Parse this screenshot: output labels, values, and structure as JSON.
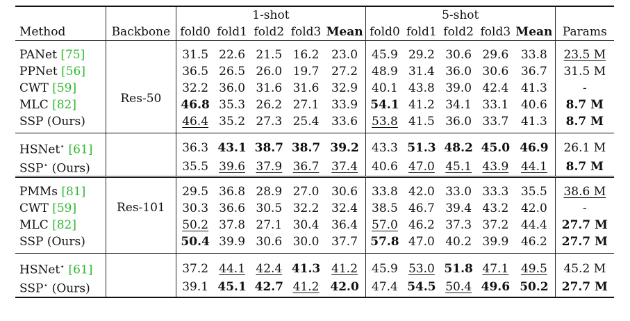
{
  "header": {
    "method": "Method",
    "backbone": "Backbone",
    "one_shot": "1-shot",
    "five_shot": "5-shot",
    "params": "Params",
    "folds": [
      "fold0",
      "fold1",
      "fold2",
      "fold3",
      "Mean"
    ]
  },
  "groups": [
    {
      "backbone": "Res-50",
      "rows": [
        {
          "name": "PANet ",
          "cite": "[75]",
          "star": "",
          "suffix": "",
          "one": [
            "31.5",
            "22.6",
            "21.5",
            "16.2",
            "23.0"
          ],
          "one_fmt": [
            "",
            "",
            "",
            "",
            ""
          ],
          "five": [
            "45.9",
            "29.2",
            "30.6",
            "29.6",
            "33.8"
          ],
          "five_fmt": [
            "",
            "",
            "",
            "",
            ""
          ],
          "params": "23.5 M",
          "params_fmt": "u"
        },
        {
          "name": "PPNet ",
          "cite": "[56]",
          "star": "",
          "suffix": "",
          "one": [
            "36.5",
            "26.5",
            "26.0",
            "19.7",
            "27.2"
          ],
          "one_fmt": [
            "",
            "",
            "",
            "",
            ""
          ],
          "five": [
            "48.9",
            "31.4",
            "36.0",
            "30.6",
            "36.7"
          ],
          "five_fmt": [
            "",
            "",
            "",
            "",
            ""
          ],
          "params": "31.5 M",
          "params_fmt": ""
        },
        {
          "name": "CWT ",
          "cite": "[59]",
          "star": "",
          "suffix": "",
          "one": [
            "32.2",
            "36.0",
            "31.6",
            "31.6",
            "32.9"
          ],
          "one_fmt": [
            "",
            "",
            "",
            "",
            ""
          ],
          "five": [
            "40.1",
            "43.8",
            "39.0",
            "42.4",
            "41.3"
          ],
          "five_fmt": [
            "",
            "",
            "",
            "",
            ""
          ],
          "params": "-",
          "params_fmt": ""
        },
        {
          "name": "MLC ",
          "cite": "[82]",
          "star": "",
          "suffix": "",
          "one": [
            "46.8",
            "35.3",
            "26.2",
            "27.1",
            "33.9"
          ],
          "one_fmt": [
            "b",
            "",
            "",
            "",
            ""
          ],
          "five": [
            "54.1",
            "41.2",
            "34.1",
            "33.1",
            "40.6"
          ],
          "five_fmt": [
            "b",
            "",
            "",
            "",
            ""
          ],
          "params": "8.7 M",
          "params_fmt": "b"
        },
        {
          "name": "SSP (Ours)",
          "cite": "",
          "star": "",
          "suffix": "",
          "one": [
            "46.4",
            "35.2",
            "27.3",
            "25.4",
            "33.6"
          ],
          "one_fmt": [
            "u",
            "",
            "",
            "",
            ""
          ],
          "five": [
            "53.8",
            "41.5",
            "36.0",
            "33.7",
            "41.3"
          ],
          "five_fmt": [
            "u",
            "",
            "",
            "",
            ""
          ],
          "params": "8.7 M",
          "params_fmt": "b"
        }
      ],
      "extra": [
        {
          "name": "HSNet",
          "cite": "[61]",
          "star": "⋆",
          "suffix": " ",
          "one": [
            "36.3",
            "43.1",
            "38.7",
            "38.7",
            "39.2"
          ],
          "one_fmt": [
            "",
            "b",
            "b",
            "b",
            "b"
          ],
          "five": [
            "43.3",
            "51.3",
            "48.2",
            "45.0",
            "46.9"
          ],
          "five_fmt": [
            "",
            "b",
            "b",
            "b",
            "b"
          ],
          "params": "26.1 M",
          "params_fmt": ""
        },
        {
          "name": "SSP",
          "cite": "",
          "star": "⋆",
          "suffix": " (Ours)",
          "one": [
            "35.5",
            "39.6",
            "37.9",
            "36.7",
            "37.4"
          ],
          "one_fmt": [
            "",
            "u",
            "u",
            "u",
            "u"
          ],
          "five": [
            "40.6",
            "47.0",
            "45.1",
            "43.9",
            "44.1"
          ],
          "five_fmt": [
            "",
            "u",
            "u",
            "u",
            "u"
          ],
          "params": "8.7 M",
          "params_fmt": "b"
        }
      ]
    },
    {
      "backbone": "Res-101",
      "rows": [
        {
          "name": "PMMs ",
          "cite": "[81]",
          "star": "",
          "suffix": "",
          "one": [
            "29.5",
            "36.8",
            "28.9",
            "27.0",
            "30.6"
          ],
          "one_fmt": [
            "",
            "",
            "",
            "",
            ""
          ],
          "five": [
            "33.8",
            "42.0",
            "33.0",
            "33.3",
            "35.5"
          ],
          "five_fmt": [
            "",
            "",
            "",
            "",
            ""
          ],
          "params": "38.6 M",
          "params_fmt": "u"
        },
        {
          "name": "CWT ",
          "cite": "[59]",
          "star": "",
          "suffix": "",
          "one": [
            "30.3",
            "36.6",
            "30.5",
            "32.2",
            "32.4"
          ],
          "one_fmt": [
            "",
            "",
            "",
            "",
            ""
          ],
          "five": [
            "38.5",
            "46.7",
            "39.4",
            "43.2",
            "42.0"
          ],
          "five_fmt": [
            "",
            "",
            "",
            "",
            ""
          ],
          "params": "-",
          "params_fmt": ""
        },
        {
          "name": "MLC ",
          "cite": "[82]",
          "star": "",
          "suffix": "",
          "one": [
            "50.2",
            "37.8",
            "27.1",
            "30.4",
            "36.4"
          ],
          "one_fmt": [
            "u",
            "",
            "",
            "",
            ""
          ],
          "five": [
            "57.0",
            "46.2",
            "37.3",
            "37.2",
            "44.4"
          ],
          "five_fmt": [
            "u",
            "",
            "",
            "",
            ""
          ],
          "params": "27.7 M",
          "params_fmt": "b"
        },
        {
          "name": "SSP (Ours)",
          "cite": "",
          "star": "",
          "suffix": "",
          "one": [
            "50.4",
            "39.9",
            "30.6",
            "30.0",
            "37.7"
          ],
          "one_fmt": [
            "b",
            "",
            "",
            "",
            ""
          ],
          "five": [
            "57.8",
            "47.0",
            "40.2",
            "39.9",
            "46.2"
          ],
          "five_fmt": [
            "b",
            "",
            "",
            "",
            ""
          ],
          "params": "27.7 M",
          "params_fmt": "b"
        }
      ],
      "extra": [
        {
          "name": "HSNet",
          "cite": "[61]",
          "star": "⋆",
          "suffix": " ",
          "one": [
            "37.2",
            "44.1",
            "42.4",
            "41.3",
            "41.2"
          ],
          "one_fmt": [
            "",
            "u",
            "u",
            "b",
            "u"
          ],
          "five": [
            "45.9",
            "53.0",
            "51.8",
            "47.1",
            "49.5"
          ],
          "five_fmt": [
            "",
            "u",
            "b",
            "u",
            "u"
          ],
          "params": "45.2 M",
          "params_fmt": ""
        },
        {
          "name": "SSP",
          "cite": "",
          "star": "⋆",
          "suffix": " (Ours)",
          "one": [
            "39.1",
            "45.1",
            "42.7",
            "41.2",
            "42.0"
          ],
          "one_fmt": [
            "",
            "b",
            "b",
            "u",
            "b"
          ],
          "five": [
            "47.4",
            "54.5",
            "50.4",
            "49.6",
            "50.2"
          ],
          "five_fmt": [
            "",
            "b",
            "u",
            "b",
            "b"
          ],
          "params": "27.7 M",
          "params_fmt": "b"
        }
      ]
    }
  ]
}
